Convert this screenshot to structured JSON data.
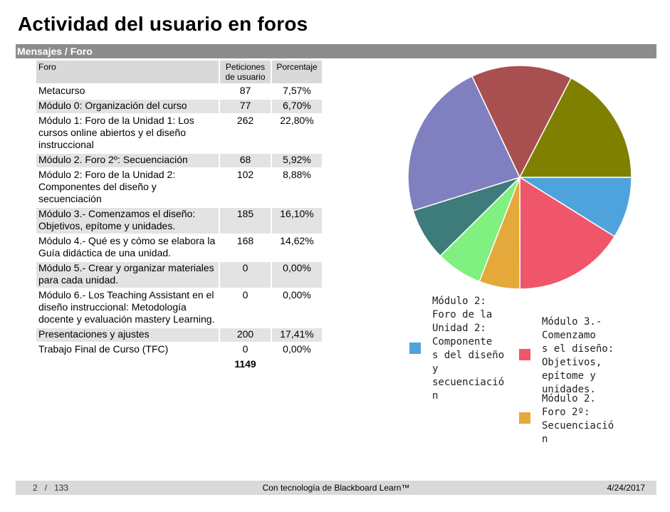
{
  "title": "Actividad del usuario en foros",
  "section": "Mensajes / Foro",
  "table": {
    "headers": {
      "foro": "Foro",
      "peticiones": "Peticiones de usuario",
      "porcentaje": "Porcentaje"
    },
    "rows": [
      {
        "foro": "Metacurso",
        "peticiones": "87",
        "porcentaje": "7,57%"
      },
      {
        "foro": "Módulo 0: Organización del curso",
        "peticiones": "77",
        "porcentaje": "6,70%"
      },
      {
        "foro": "Módulo 1: Foro de la Unidad 1: Los cursos online abiertos y el diseño instruccional",
        "peticiones": "262",
        "porcentaje": "22,80%"
      },
      {
        "foro": "Módulo 2. Foro 2º: Secuenciación",
        "peticiones": "68",
        "porcentaje": "5,92%"
      },
      {
        "foro": "Módulo 2: Foro de la Unidad 2: Componentes del diseño y secuenciación",
        "peticiones": "102",
        "porcentaje": "8,88%"
      },
      {
        "foro": "Módulo 3.- Comenzamos el diseño: Objetivos, epítome y unidades.",
        "peticiones": "185",
        "porcentaje": "16,10%"
      },
      {
        "foro": "Módulo 4.- Qué es y cómo se elabora la Guía didáctica de una unidad.",
        "peticiones": "168",
        "porcentaje": "14,62%"
      },
      {
        "foro": "Módulo 5.- Crear y organizar materiales para cada unidad.",
        "peticiones": "0",
        "porcentaje": "0,00%"
      },
      {
        "foro": "Módulo 6.- Los Teaching Assistant en el diseño instruccional: Metodología docente y evaluación mastery Learning.",
        "peticiones": "0",
        "porcentaje": "0,00%"
      },
      {
        "foro": "Presentaciones y ajustes",
        "peticiones": "200",
        "porcentaje": "17,41%"
      },
      {
        "foro": "Trabajo Final de Curso (TFC)",
        "peticiones": "0",
        "porcentaje": "0,00%"
      }
    ],
    "total": "1149"
  },
  "chart_data": {
    "type": "pie",
    "slices": [
      {
        "label": "Módulo 2: Foro de la Unidad 2: Componentes del diseño y secuenciación",
        "value": 102,
        "color": "#4fa3dc"
      },
      {
        "label": "Módulo 3.- Comenzamos el diseño: Objetivos, epítome y unidades.",
        "value": 185,
        "color": "#f0566a"
      },
      {
        "label": "Módulo 2. Foro 2º: Secuenciación",
        "value": 68,
        "color": "#e5a93b"
      },
      {
        "label": "Módulo 0: Organización del curso",
        "value": 77,
        "color": "#80f080"
      },
      {
        "label": "Metacurso",
        "value": 87,
        "color": "#3e7b7b"
      },
      {
        "label": "Módulo 1: Foro de la Unidad 1: Los cursos online abiertos y el diseño instruccional",
        "value": 262,
        "color": "#8080c0"
      },
      {
        "label": "Módulo 4.- Qué es y cómo se elabora la Guía didáctica de una unidad.",
        "value": 168,
        "color": "#a85050"
      },
      {
        "label": "Presentaciones y ajustes",
        "value": 200,
        "color": "#808000"
      }
    ],
    "legend": [
      {
        "text": "Módulo 2:\nForo de la\nUnidad 2:\nComponente\ns del diseño\ny\nsecuenciació\nn",
        "color": "#4fa3dc"
      },
      {
        "text": "Módulo 3.-\nComenzamo\ns el diseño:\nObjetivos,\nepítome y\nunidades.",
        "color": "#f0566a"
      },
      {
        "text": "Módulo 2.\nForo 2º:\nSecuenciació\nn",
        "color": "#e5a93b"
      }
    ]
  },
  "footer": {
    "page": "2",
    "separator": "/",
    "total_pages": "133",
    "powered": "Con tecnología de Blackboard Learn™",
    "date": "4/24/2017"
  }
}
